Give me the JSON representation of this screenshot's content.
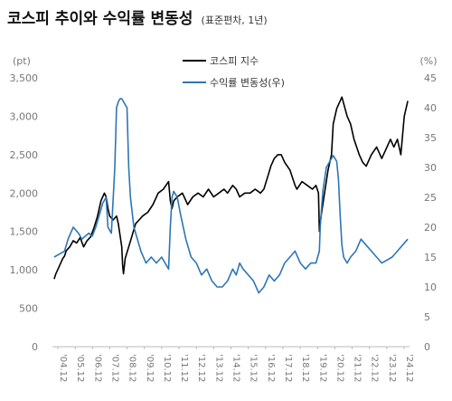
{
  "title": {
    "main": "코스피 추이와 수익률 변동성",
    "sub": "(표준편차, 1년)"
  },
  "chart_data": {
    "type": "line",
    "title": "코스피 추이와 수익률 변동성",
    "subtitle": "(표준편차, 1년)",
    "y_left": {
      "unit": "(pt)",
      "min": 0,
      "max": 3500,
      "ticks": [
        "0",
        "500",
        "1,000",
        "1,500",
        "2,000",
        "2,500",
        "3,000",
        "3,500"
      ]
    },
    "y_right": {
      "unit": "(%)",
      "min": 0,
      "max": 45,
      "ticks": [
        "0",
        "5",
        "10",
        "15",
        "20",
        "25",
        "30",
        "35",
        "40",
        "45"
      ]
    },
    "x_ticks": [
      "'04.12",
      "'05.12",
      "'06.12",
      "'07.12",
      "'08.12",
      "'09.12",
      "'10.12",
      "'11.12",
      "'12.12",
      "'13.12",
      "'14.12",
      "'15.12",
      "'16.12",
      "'17.12",
      "'18.12",
      "'19.12",
      "'20.12",
      "'21.12",
      "'22.12",
      "'23.12",
      "'24.12"
    ],
    "x_range": [
      2004.8,
      2025.4
    ],
    "legend_placement": "top-center",
    "colors": {
      "kospi": "#000000",
      "vol": "#2e75b6"
    },
    "series": [
      {
        "name": "코스피 지수",
        "axis": "left",
        "x": [
          2004.9,
          2005.0,
          2005.1,
          2005.2,
          2005.3,
          2005.4,
          2005.5,
          2005.6,
          2005.8,
          2006.0,
          2006.2,
          2006.4,
          2006.6,
          2006.8,
          2007.0,
          2007.2,
          2007.4,
          2007.5,
          2007.6,
          2007.7,
          2007.8,
          2007.9,
          2008.0,
          2008.1,
          2008.3,
          2008.5,
          2008.6,
          2008.8,
          2008.85,
          2008.9,
          2009.0,
          2009.2,
          2009.4,
          2009.6,
          2009.8,
          2010.0,
          2010.3,
          2010.6,
          2010.9,
          2011.2,
          2011.5,
          2011.6,
          2011.7,
          2011.8,
          2012.0,
          2012.3,
          2012.6,
          2012.9,
          2013.2,
          2013.5,
          2013.8,
          2014.1,
          2014.4,
          2014.7,
          2014.9,
          2015.2,
          2015.4,
          2015.6,
          2015.9,
          2016.2,
          2016.5,
          2016.8,
          2017.0,
          2017.2,
          2017.4,
          2017.6,
          2017.8,
          2018.0,
          2018.2,
          2018.5,
          2018.8,
          2018.9,
          2019.2,
          2019.5,
          2019.8,
          2020.0,
          2020.15,
          2020.2,
          2020.3,
          2020.5,
          2020.7,
          2020.9,
          2021.0,
          2021.2,
          2021.5,
          2021.8,
          2022.0,
          2022.2,
          2022.5,
          2022.7,
          2022.9,
          2023.2,
          2023.5,
          2023.8,
          2024.0,
          2024.3,
          2024.5,
          2024.7,
          2024.9,
          2025.1,
          2025.3
        ],
        "y": [
          880,
          950,
          1000,
          1050,
          1100,
          1150,
          1180,
          1250,
          1300,
          1380,
          1350,
          1420,
          1300,
          1380,
          1430,
          1550,
          1700,
          1800,
          1900,
          1950,
          2000,
          1950,
          1800,
          1700,
          1650,
          1700,
          1600,
          1300,
          1050,
          950,
          1150,
          1300,
          1450,
          1600,
          1650,
          1700,
          1750,
          1850,
          2000,
          2050,
          2150,
          1900,
          1800,
          1900,
          1950,
          2000,
          1850,
          1950,
          2000,
          1950,
          2050,
          1950,
          2000,
          2050,
          2000,
          2100,
          2050,
          1950,
          2000,
          2000,
          2050,
          2000,
          2050,
          2200,
          2350,
          2450,
          2500,
          2500,
          2400,
          2300,
          2100,
          2050,
          2150,
          2100,
          2050,
          2100,
          2000,
          1500,
          1700,
          2000,
          2300,
          2500,
          2900,
          3100,
          3250,
          3000,
          2900,
          2700,
          2500,
          2400,
          2350,
          2500,
          2600,
          2450,
          2550,
          2700,
          2600,
          2700,
          2500,
          3000,
          3200
        ]
      },
      {
        "name": "수익률 변동성(우)",
        "axis": "right",
        "x": [
          2004.9,
          2005.2,
          2005.5,
          2005.7,
          2006.0,
          2006.3,
          2006.5,
          2006.7,
          2006.9,
          2007.1,
          2007.3,
          2007.5,
          2007.7,
          2007.9,
          2008.0,
          2008.2,
          2008.4,
          2008.5,
          2008.6,
          2008.7,
          2008.8,
          2008.9,
          2009.0,
          2009.1,
          2009.2,
          2009.3,
          2009.5,
          2009.7,
          2009.9,
          2010.2,
          2010.5,
          2010.8,
          2011.1,
          2011.3,
          2011.5,
          2011.6,
          2011.7,
          2011.8,
          2012.0,
          2012.2,
          2012.5,
          2012.8,
          2013.1,
          2013.4,
          2013.7,
          2014.0,
          2014.3,
          2014.6,
          2014.9,
          2015.2,
          2015.4,
          2015.6,
          2015.8,
          2016.1,
          2016.4,
          2016.7,
          2017.0,
          2017.3,
          2017.6,
          2017.9,
          2018.2,
          2018.5,
          2018.8,
          2019.1,
          2019.4,
          2019.7,
          2020.0,
          2020.1,
          2020.2,
          2020.25,
          2020.4,
          2020.6,
          2020.8,
          2021.0,
          2021.2,
          2021.3,
          2021.4,
          2021.5,
          2021.6,
          2021.8,
          2022.0,
          2022.3,
          2022.6,
          2022.9,
          2023.2,
          2023.5,
          2023.8,
          2024.1,
          2024.4,
          2024.7,
          2025.0,
          2025.3
        ],
        "y": [
          15,
          15.5,
          16,
          18,
          20,
          19,
          18,
          18.5,
          19,
          18.5,
          20,
          22,
          24,
          25,
          20,
          19,
          30,
          40,
          41,
          41.5,
          41.5,
          41,
          40.5,
          40,
          30,
          25,
          20,
          18,
          16,
          14,
          15,
          14,
          15,
          14,
          13,
          20,
          25,
          26,
          25,
          22,
          18,
          15,
          14,
          12,
          13,
          11,
          10,
          10,
          11,
          13,
          12,
          14,
          13,
          12,
          11,
          9,
          10,
          12,
          11,
          12,
          14,
          15,
          16,
          14,
          13,
          14,
          14,
          15,
          16,
          20,
          26,
          30,
          31,
          32,
          31,
          28,
          22,
          17,
          15,
          14,
          15,
          16,
          18,
          17,
          16,
          15,
          14,
          14.5,
          15,
          16,
          17,
          18
        ]
      }
    ]
  }
}
